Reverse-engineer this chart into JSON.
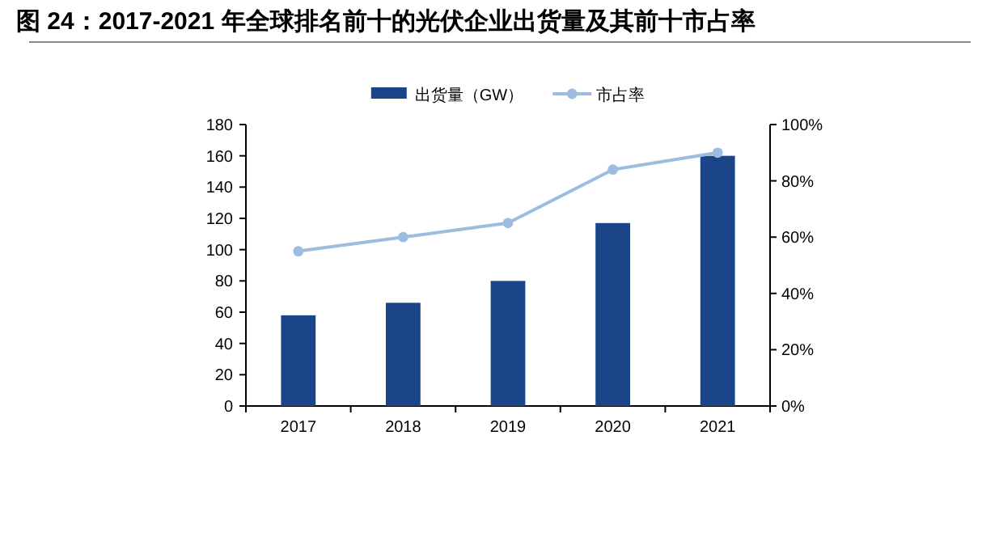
{
  "chart_data": {
    "type": "bar",
    "title": "图 24：2017-2021 年全球排名前十的光伏企业出货量及其前十市占率",
    "categories": [
      "2017",
      "2018",
      "2019",
      "2020",
      "2021"
    ],
    "series": [
      {
        "name": "出货量（GW）",
        "color": "#1a4689",
        "values": [
          58,
          66,
          80,
          117,
          160
        ]
      },
      {
        "name": "市占率",
        "type": "line",
        "axis": "y2",
        "color": "#9dbde0",
        "marker": "circle",
        "values": [
          55,
          60,
          65,
          84,
          90
        ]
      }
    ],
    "ylim": [
      0,
      180
    ],
    "yticks": [
      0,
      20,
      40,
      60,
      80,
      100,
      120,
      140,
      160,
      180
    ],
    "y2lim": [
      0,
      100
    ],
    "y2ticks": [
      {
        "value": 0,
        "label": "0%"
      },
      {
        "value": 20,
        "label": "20%"
      },
      {
        "value": 40,
        "label": "40%"
      },
      {
        "value": 60,
        "label": "60%"
      },
      {
        "value": 80,
        "label": "80%"
      },
      {
        "value": 100,
        "label": "100%"
      }
    ],
    "grid": false,
    "legend": "top"
  }
}
